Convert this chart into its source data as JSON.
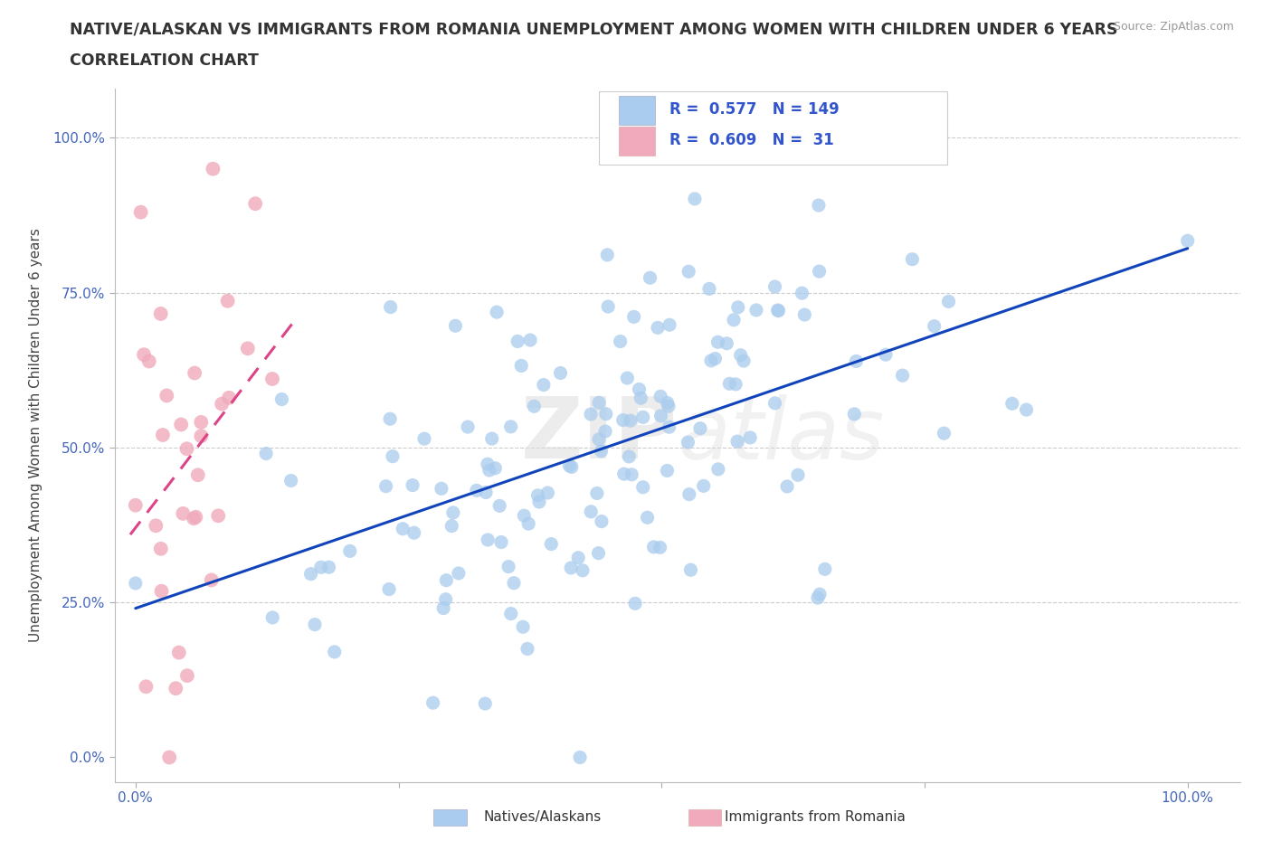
{
  "title_line1": "NATIVE/ALASKAN VS IMMIGRANTS FROM ROMANIA UNEMPLOYMENT AMONG WOMEN WITH CHILDREN UNDER 6 YEARS",
  "title_line2": "CORRELATION CHART",
  "source": "Source: ZipAtlas.com",
  "ylabel": "Unemployment Among Women with Children Under 6 years",
  "xlim": [
    -0.02,
    1.05
  ],
  "ylim": [
    -0.04,
    1.08
  ],
  "blue_R": 0.577,
  "blue_N": 149,
  "pink_R": 0.609,
  "pink_N": 31,
  "blue_color": "#aaccee",
  "blue_line_color": "#1144bb",
  "pink_color": "#f0aabb",
  "pink_line_color": "#dd4488",
  "background_color": "#ffffff",
  "grid_color": "#cccccc",
  "legend_label_blue": "Natives/Alaskans",
  "legend_label_pink": "Immigrants from Romania",
  "tick_color": "#4466bb",
  "title_color": "#333333"
}
